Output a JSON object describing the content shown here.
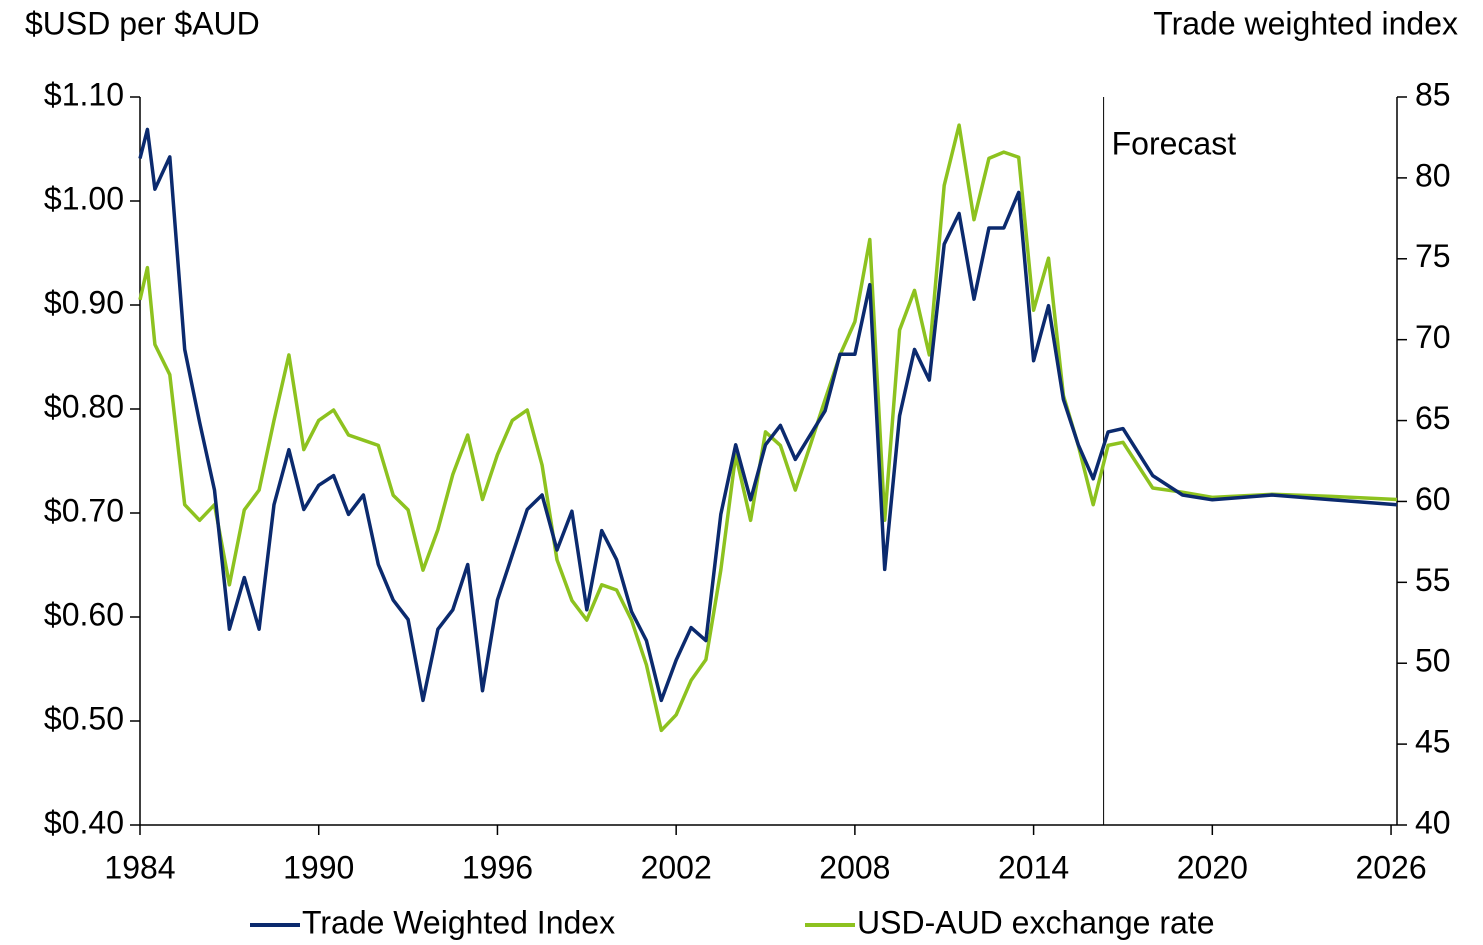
{
  "chart_data": {
    "type": "line",
    "y_label": "$USD per $AUD",
    "y2_label": "Trade weighted index",
    "annotation": {
      "text": "Forecast",
      "x": 2016.35
    },
    "x": [
      1984,
      1984.25,
      1984.5,
      1985,
      1985.5,
      1986,
      1986.5,
      1987,
      1987.5,
      1988,
      1988.5,
      1989,
      1989.5,
      1990,
      1990.5,
      1991,
      1991.5,
      1992,
      1992.5,
      1993,
      1993.5,
      1994,
      1994.5,
      1995,
      1995.5,
      1996,
      1996.5,
      1997,
      1997.5,
      1998,
      1998.5,
      1999,
      1999.5,
      2000,
      2000.5,
      2001,
      2001.5,
      2002,
      2002.5,
      2003,
      2003.5,
      2004,
      2004.5,
      2005,
      2005.5,
      2006,
      2006.5,
      2007,
      2007.5,
      2008,
      2008.5,
      2009,
      2009.5,
      2010,
      2010.5,
      2011,
      2011.5,
      2012,
      2012.5,
      2013,
      2013.5,
      2014,
      2014.5,
      2015,
      2015.5,
      2016,
      2016.5,
      2017,
      2018,
      2019,
      2020,
      2022,
      2024,
      2026.2
    ],
    "series": [
      {
        "name": "Trade Weighted Index",
        "color": "#0b2a6e",
        "axis": "y2",
        "values": [
          81.2,
          83.0,
          79.3,
          81.3,
          69.4,
          64.9,
          60.7,
          52.1,
          55.3,
          52.1,
          59.8,
          63.2,
          59.5,
          61.0,
          61.6,
          59.2,
          60.4,
          56.1,
          53.9,
          52.7,
          47.7,
          52.1,
          53.3,
          56.1,
          48.3,
          53.9,
          56.7,
          59.5,
          60.4,
          57.0,
          59.4,
          53.3,
          58.2,
          56.4,
          53.2,
          51.4,
          47.7,
          50.2,
          52.2,
          51.4,
          59.2,
          63.5,
          60.1,
          63.5,
          64.7,
          62.6,
          64.1,
          65.6,
          69.1,
          69.1,
          73.4,
          55.8,
          65.3,
          69.4,
          67.5,
          75.9,
          77.8,
          72.5,
          76.9,
          76.9,
          79.1,
          68.7,
          72.1,
          66.3,
          63.5,
          61.4,
          64.3,
          64.5,
          61.6,
          60.4,
          60.1,
          60.4,
          60.1,
          59.8
        ]
      },
      {
        "name": "USD-AUD exchange rate",
        "color": "#8dc21f",
        "values": [
          0.905,
          0.936,
          0.862,
          0.833,
          0.708,
          0.693,
          0.708,
          0.631,
          0.703,
          0.722,
          0.789,
          0.852,
          0.761,
          0.789,
          0.799,
          0.775,
          0.77,
          0.765,
          0.717,
          0.703,
          0.645,
          0.684,
          0.737,
          0.775,
          0.713,
          0.756,
          0.789,
          0.799,
          0.746,
          0.655,
          0.616,
          0.597,
          0.631,
          0.626,
          0.597,
          0.554,
          0.491,
          0.506,
          0.539,
          0.559,
          0.645,
          0.756,
          0.693,
          0.778,
          0.765,
          0.722,
          0.765,
          0.809,
          0.852,
          0.884,
          0.963,
          0.693,
          0.876,
          0.914,
          0.852,
          1.015,
          1.073,
          0.982,
          1.041,
          1.047,
          1.042,
          0.895,
          0.945,
          0.813,
          0.765,
          0.708,
          0.765,
          0.768,
          0.724,
          0.72,
          0.715,
          0.718,
          0.716,
          0.713
        ]
      }
    ],
    "xlim": [
      1984,
      2026.2
    ],
    "xticks": [
      1984,
      1990,
      1996,
      2002,
      2008,
      2014,
      2020,
      2026
    ],
    "ylim": [
      0.4,
      1.1
    ],
    "yticks": [
      {
        "value": 0.4,
        "label": "$0.40"
      },
      {
        "value": 0.5,
        "label": "$0.50"
      },
      {
        "value": 0.6,
        "label": "$0.60"
      },
      {
        "value": 0.7,
        "label": "$0.70"
      },
      {
        "value": 0.8,
        "label": "$0.80"
      },
      {
        "value": 0.9,
        "label": "$0.90"
      },
      {
        "value": 1.0,
        "label": "$1.00"
      },
      {
        "value": 1.1,
        "label": "$1.10"
      }
    ],
    "y2lim": [
      40,
      85
    ],
    "y2ticks": [
      40,
      45,
      50,
      55,
      60,
      65,
      70,
      75,
      80,
      85
    ],
    "grid": false,
    "legend": "bottom"
  }
}
